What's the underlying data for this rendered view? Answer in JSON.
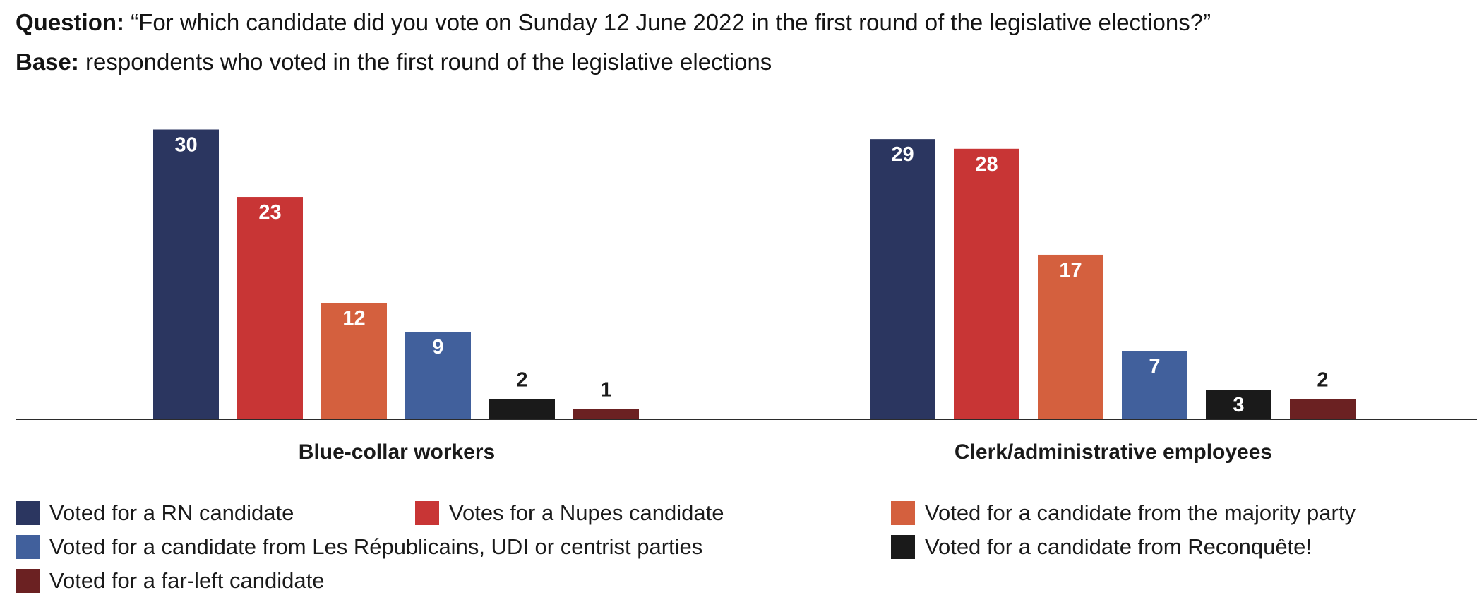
{
  "header": {
    "question_label": "Question:",
    "question_text": " “For which candidate did you vote on Sunday 12 June 2022 in the first round of the legislative elections?”",
    "base_label": "Base:",
    "base_text": " respondents who voted in the first round of the legislative elections"
  },
  "chart_data": {
    "type": "bar",
    "categories": [
      "Blue-collar workers",
      "Clerk/administrative employees"
    ],
    "series": [
      {
        "name": "Voted for a RN candidate",
        "color": "#2b3660",
        "values": [
          30,
          29
        ]
      },
      {
        "name": "Votes for a Nupes candidate",
        "color": "#c83535",
        "values": [
          23,
          28
        ]
      },
      {
        "name": "Voted for a candidate from the majority party",
        "color": "#d4603e",
        "values": [
          12,
          17
        ]
      },
      {
        "name": "Voted for a candidate from Les Républicains, UDI or centrist parties",
        "color": "#41609c",
        "values": [
          9,
          7
        ]
      },
      {
        "name": "Voted for a candidate from Reconquête!",
        "color": "#1a1a1a",
        "values": [
          2,
          3
        ]
      },
      {
        "name": "Voted for a far-left candidate",
        "color": "#6b2122",
        "values": [
          1,
          2
        ]
      }
    ],
    "ylim": [
      0,
      30
    ],
    "grid": false,
    "legend_position": "bottom"
  }
}
